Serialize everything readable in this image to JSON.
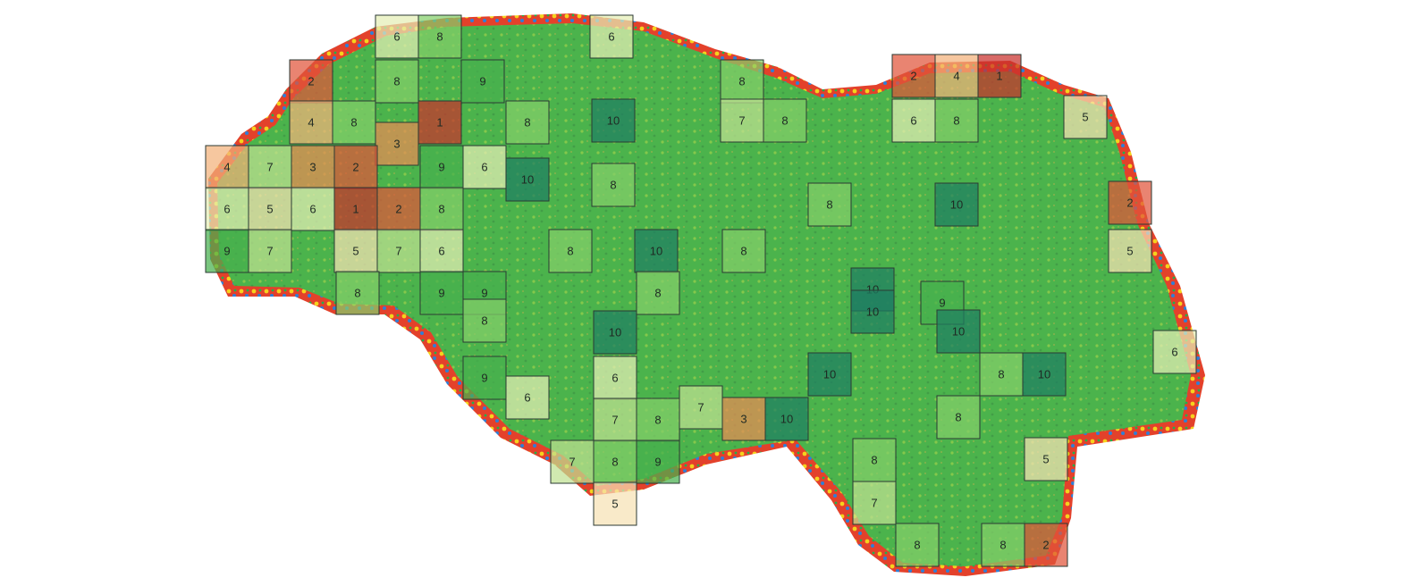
{
  "map": {
    "colors": {
      "background": "#ffffff",
      "field_green": "#4bb34c",
      "grid_stroke": "#2b3a33"
    },
    "score_scale": {
      "1": "#c9302c",
      "2": "#e0553a",
      "3": "#e98a55",
      "4": "#f2b27a",
      "5": "#f6e2b4",
      "6": "#e4efb5",
      "7": "#bfe092",
      "8": "#84cf6a",
      "9": "#47b04d",
      "10": "#1e7e62"
    },
    "cells": [
      {
        "label": "6"
      },
      {
        "label": "8"
      },
      {
        "label": "6"
      },
      {
        "label": "2"
      },
      {
        "label": "8"
      },
      {
        "label": "9"
      },
      {
        "label": "8"
      },
      {
        "label": "2"
      },
      {
        "label": "4"
      },
      {
        "label": "1"
      },
      {
        "label": "4"
      },
      {
        "label": "8"
      },
      {
        "label": "3"
      },
      {
        "label": "1"
      },
      {
        "label": "8"
      },
      {
        "label": "10"
      },
      {
        "label": "7"
      },
      {
        "label": "8"
      },
      {
        "label": "6"
      },
      {
        "label": "8"
      },
      {
        "label": "5"
      },
      {
        "label": "4"
      },
      {
        "label": "7"
      },
      {
        "label": "3"
      },
      {
        "label": "2"
      },
      {
        "label": "9"
      },
      {
        "label": "6"
      },
      {
        "label": "10"
      },
      {
        "label": "8"
      },
      {
        "label": "6"
      },
      {
        "label": "5"
      },
      {
        "label": "6"
      },
      {
        "label": "1"
      },
      {
        "label": "2"
      },
      {
        "label": "8"
      },
      {
        "label": "8"
      },
      {
        "label": "10"
      },
      {
        "label": "2"
      },
      {
        "label": "9"
      },
      {
        "label": "7"
      },
      {
        "label": "5"
      },
      {
        "label": "7"
      },
      {
        "label": "6"
      },
      {
        "label": "8"
      },
      {
        "label": "10"
      },
      {
        "label": "8"
      },
      {
        "label": "5"
      },
      {
        "label": "8"
      },
      {
        "label": "9"
      },
      {
        "label": "9"
      },
      {
        "label": "8"
      },
      {
        "label": "10"
      },
      {
        "label": "9"
      },
      {
        "label": "8"
      },
      {
        "label": "10"
      },
      {
        "label": "10"
      },
      {
        "label": "6"
      },
      {
        "label": "9"
      },
      {
        "label": "6"
      },
      {
        "label": "6"
      },
      {
        "label": "10"
      },
      {
        "label": "10"
      },
      {
        "label": "8"
      },
      {
        "label": "10"
      },
      {
        "label": "7"
      },
      {
        "label": "8"
      },
      {
        "label": "7"
      },
      {
        "label": "3"
      },
      {
        "label": "10"
      },
      {
        "label": "8"
      },
      {
        "label": "7"
      },
      {
        "label": "8"
      },
      {
        "label": "9"
      },
      {
        "label": "8"
      },
      {
        "label": "5"
      },
      {
        "label": "5"
      },
      {
        "label": "7"
      },
      {
        "label": "8"
      },
      {
        "label": "8"
      },
      {
        "label": "2"
      }
    ]
  }
}
